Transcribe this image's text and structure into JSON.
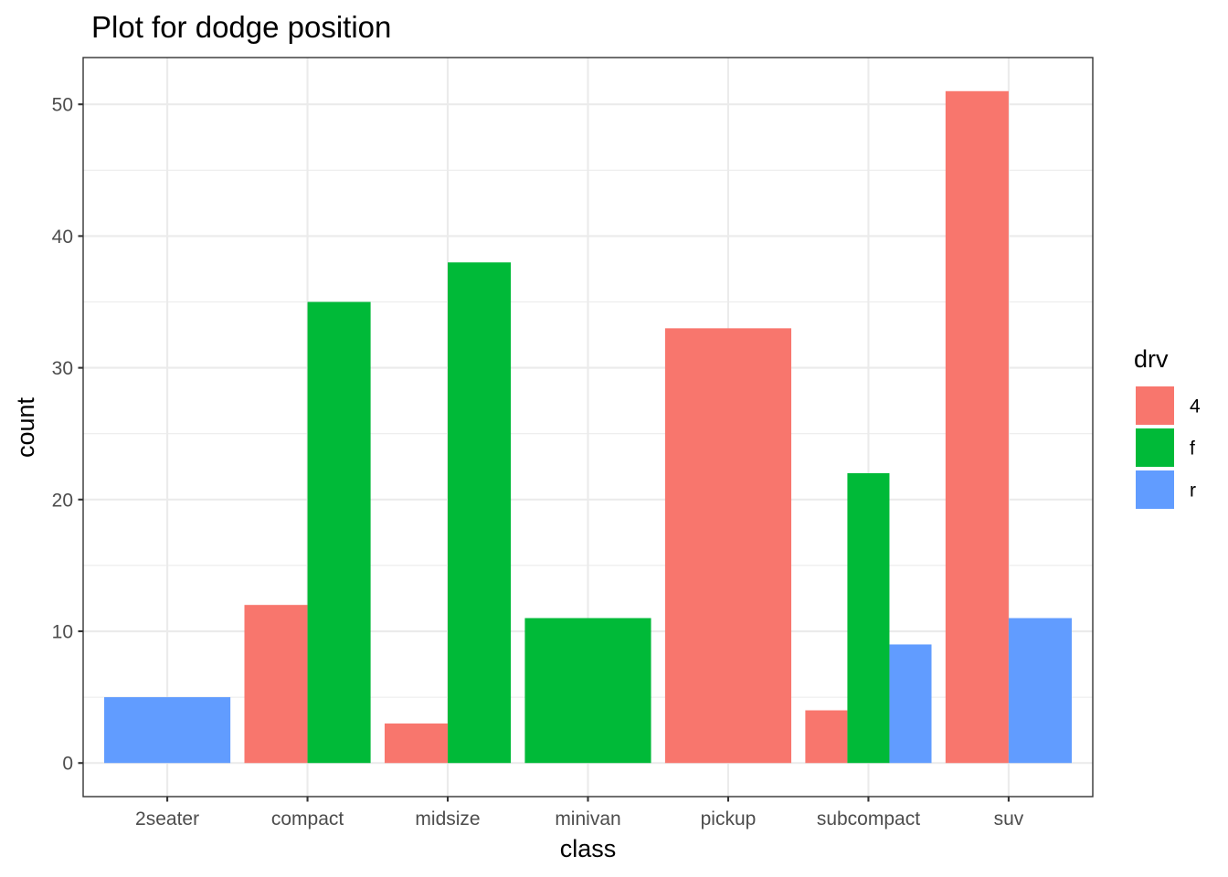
{
  "chart_data": {
    "type": "bar",
    "title": "Plot for dodge position",
    "xlabel": "class",
    "ylabel": "count",
    "ylim": [
      -2.55,
      53.55
    ],
    "yticks": [
      0,
      10,
      20,
      30,
      40,
      50
    ],
    "grid": true,
    "legend_position": "right",
    "legend_title": "drv",
    "categories": [
      "2seater",
      "compact",
      "midsize",
      "minivan",
      "pickup",
      "subcompact",
      "suv"
    ],
    "series": [
      {
        "name": "4",
        "color": "#F8766D",
        "values": [
          null,
          12,
          3,
          null,
          33,
          4,
          51
        ]
      },
      {
        "name": "f",
        "color": "#00BA38",
        "values": [
          null,
          35,
          38,
          11,
          null,
          22,
          null
        ]
      },
      {
        "name": "r",
        "color": "#619CFF",
        "values": [
          5,
          null,
          null,
          null,
          null,
          9,
          11
        ]
      }
    ]
  }
}
